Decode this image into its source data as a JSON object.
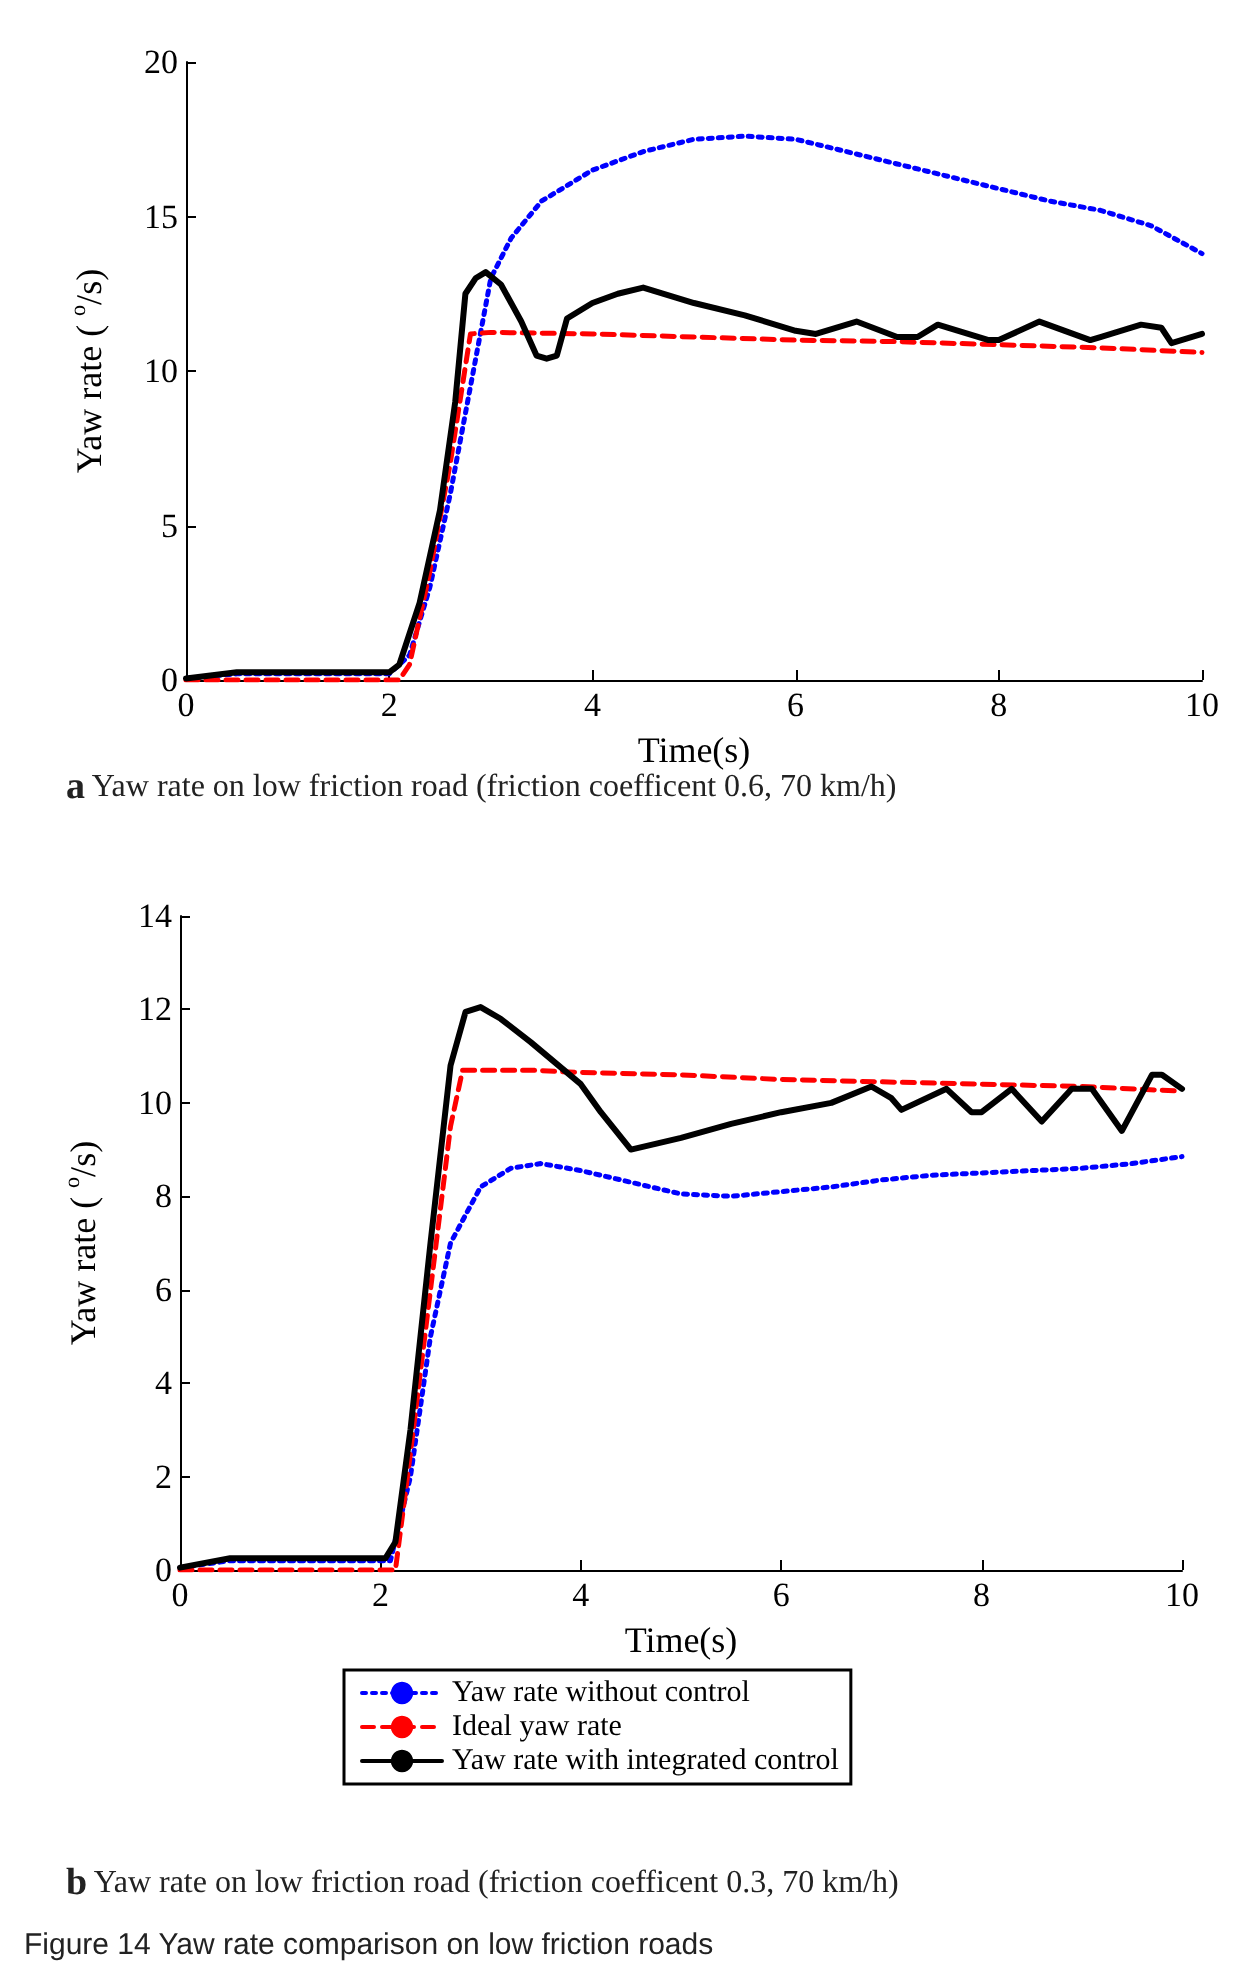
{
  "chart_data": [
    {
      "type": "line",
      "title": "a Yaw rate on low friction road (friction coefficent 0.6, 70 km/h)",
      "xlabel": "Time(s)",
      "ylabel": "Yaw rate ( $^{o}$/s)",
      "xlim": [
        0,
        10
      ],
      "ylim": [
        0,
        20
      ],
      "xticks": [
        0,
        2,
        4,
        6,
        8,
        10
      ],
      "yticks": [
        0,
        5,
        10,
        15,
        20
      ],
      "grid": false,
      "legend": false,
      "marker": "none",
      "series": [
        {
          "color": "#0000ff",
          "line_style": "dotted",
          "x": [
            0,
            0.5,
            2.0,
            2.2,
            2.4,
            2.6,
            2.8,
            3.0,
            3.2,
            3.5,
            4.0,
            4.5,
            5.0,
            5.5,
            6.0,
            6.5,
            7.0,
            7.5,
            8.0,
            8.5,
            9.0,
            9.5,
            10
          ],
          "values": [
            0.05,
            0.2,
            0.2,
            0.8,
            3,
            6,
            9.5,
            13,
            14.3,
            15.5,
            16.5,
            17.1,
            17.5,
            17.6,
            17.5,
            17.1,
            16.7,
            16.3,
            15.9,
            15.5,
            15.2,
            14.7,
            13.8
          ]
        },
        {
          "color": "#ff0000",
          "line_style": "dashed",
          "x": [
            0,
            2.1,
            2.2,
            2.4,
            2.6,
            2.8,
            3,
            4,
            5,
            6,
            7,
            8,
            9,
            10
          ],
          "values": [
            0,
            0,
            0.5,
            3.5,
            7,
            11.2,
            11.25,
            11.2,
            11.1,
            11.0,
            10.95,
            10.85,
            10.75,
            10.6
          ]
        },
        {
          "color": "#000000",
          "line_style": "solid",
          "x": [
            0,
            0.5,
            2.0,
            2.1,
            2.3,
            2.5,
            2.65,
            2.75,
            2.85,
            2.95,
            3.1,
            3.3,
            3.45,
            3.55,
            3.65,
            3.75,
            4.0,
            4.25,
            4.5,
            5,
            5.5,
            6,
            6.2,
            6.6,
            7,
            7.2,
            7.4,
            7.9,
            8.0,
            8.4,
            8.9,
            9.0,
            9.4,
            9.6,
            9.7,
            10
          ],
          "values": [
            0.05,
            0.25,
            0.25,
            0.5,
            2.5,
            5.5,
            9,
            12.5,
            13,
            13.2,
            12.8,
            11.6,
            10.5,
            10.4,
            10.5,
            11.7,
            12.2,
            12.5,
            12.7,
            12.2,
            11.8,
            11.3,
            11.2,
            11.6,
            11.1,
            11.1,
            11.5,
            11.0,
            11.0,
            11.6,
            11.0,
            11.1,
            11.5,
            11.4,
            10.9,
            11.2
          ]
        }
      ]
    },
    {
      "type": "line",
      "title": "b Yaw rate on low friction road (friction coefficent 0.3, 70 km/h)",
      "xlabel": "Time(s)",
      "ylabel": "Yaw rate ( $^{o}$/s)",
      "xlim": [
        0,
        10
      ],
      "ylim": [
        0,
        14
      ],
      "xticks": [
        0,
        2,
        4,
        6,
        8,
        10
      ],
      "yticks": [
        0,
        2,
        4,
        6,
        8,
        10,
        12,
        14
      ],
      "grid": false,
      "legend": "bottom",
      "marker": "none",
      "annotations": [
        "Figure 14 Yaw rate comparison on low friction roads"
      ],
      "series": [
        {
          "name": "Yaw rate without control",
          "color": "#0000ff",
          "line_style": "dotted",
          "x": [
            0,
            0.5,
            2.1,
            2.3,
            2.5,
            2.7,
            3.0,
            3.3,
            3.6,
            4,
            4.5,
            5,
            5.5,
            6,
            6.5,
            7,
            7.5,
            8,
            8.5,
            9,
            9.5,
            10
          ],
          "values": [
            0.05,
            0.2,
            0.2,
            2,
            5,
            7,
            8.2,
            8.6,
            8.7,
            8.55,
            8.3,
            8.05,
            8.0,
            8.1,
            8.2,
            8.35,
            8.45,
            8.5,
            8.55,
            8.6,
            8.7,
            8.85
          ]
        },
        {
          "name": "Ideal yaw rate",
          "color": "#ff0000",
          "line_style": "dashed",
          "x": [
            0,
            2.15,
            2.3,
            2.5,
            2.7,
            2.82,
            3.5,
            4,
            5,
            6,
            7,
            8,
            9,
            10
          ],
          "values": [
            0,
            0,
            2.5,
            6,
            9.5,
            10.7,
            10.7,
            10.65,
            10.6,
            10.5,
            10.45,
            10.4,
            10.35,
            10.25
          ]
        },
        {
          "name": "Yaw rate with integrated control",
          "color": "#000000",
          "line_style": "solid",
          "x": [
            0,
            0.5,
            2.05,
            2.15,
            2.3,
            2.5,
            2.7,
            2.85,
            3.0,
            3.2,
            3.5,
            4,
            4.2,
            4.5,
            5,
            5.5,
            6,
            6.5,
            6.9,
            7.1,
            7.2,
            7.65,
            7.9,
            8.0,
            8.3,
            8.6,
            8.9,
            9.1,
            9.4,
            9.7,
            9.8,
            10
          ],
          "values": [
            0.05,
            0.25,
            0.25,
            0.6,
            3,
            7,
            10.8,
            11.95,
            12.05,
            11.8,
            11.3,
            10.4,
            9.8,
            9.0,
            9.25,
            9.55,
            9.8,
            10.0,
            10.35,
            10.1,
            9.85,
            10.3,
            9.8,
            9.8,
            10.3,
            9.6,
            10.3,
            10.3,
            9.4,
            10.6,
            10.6,
            10.3
          ]
        }
      ]
    }
  ]
}
